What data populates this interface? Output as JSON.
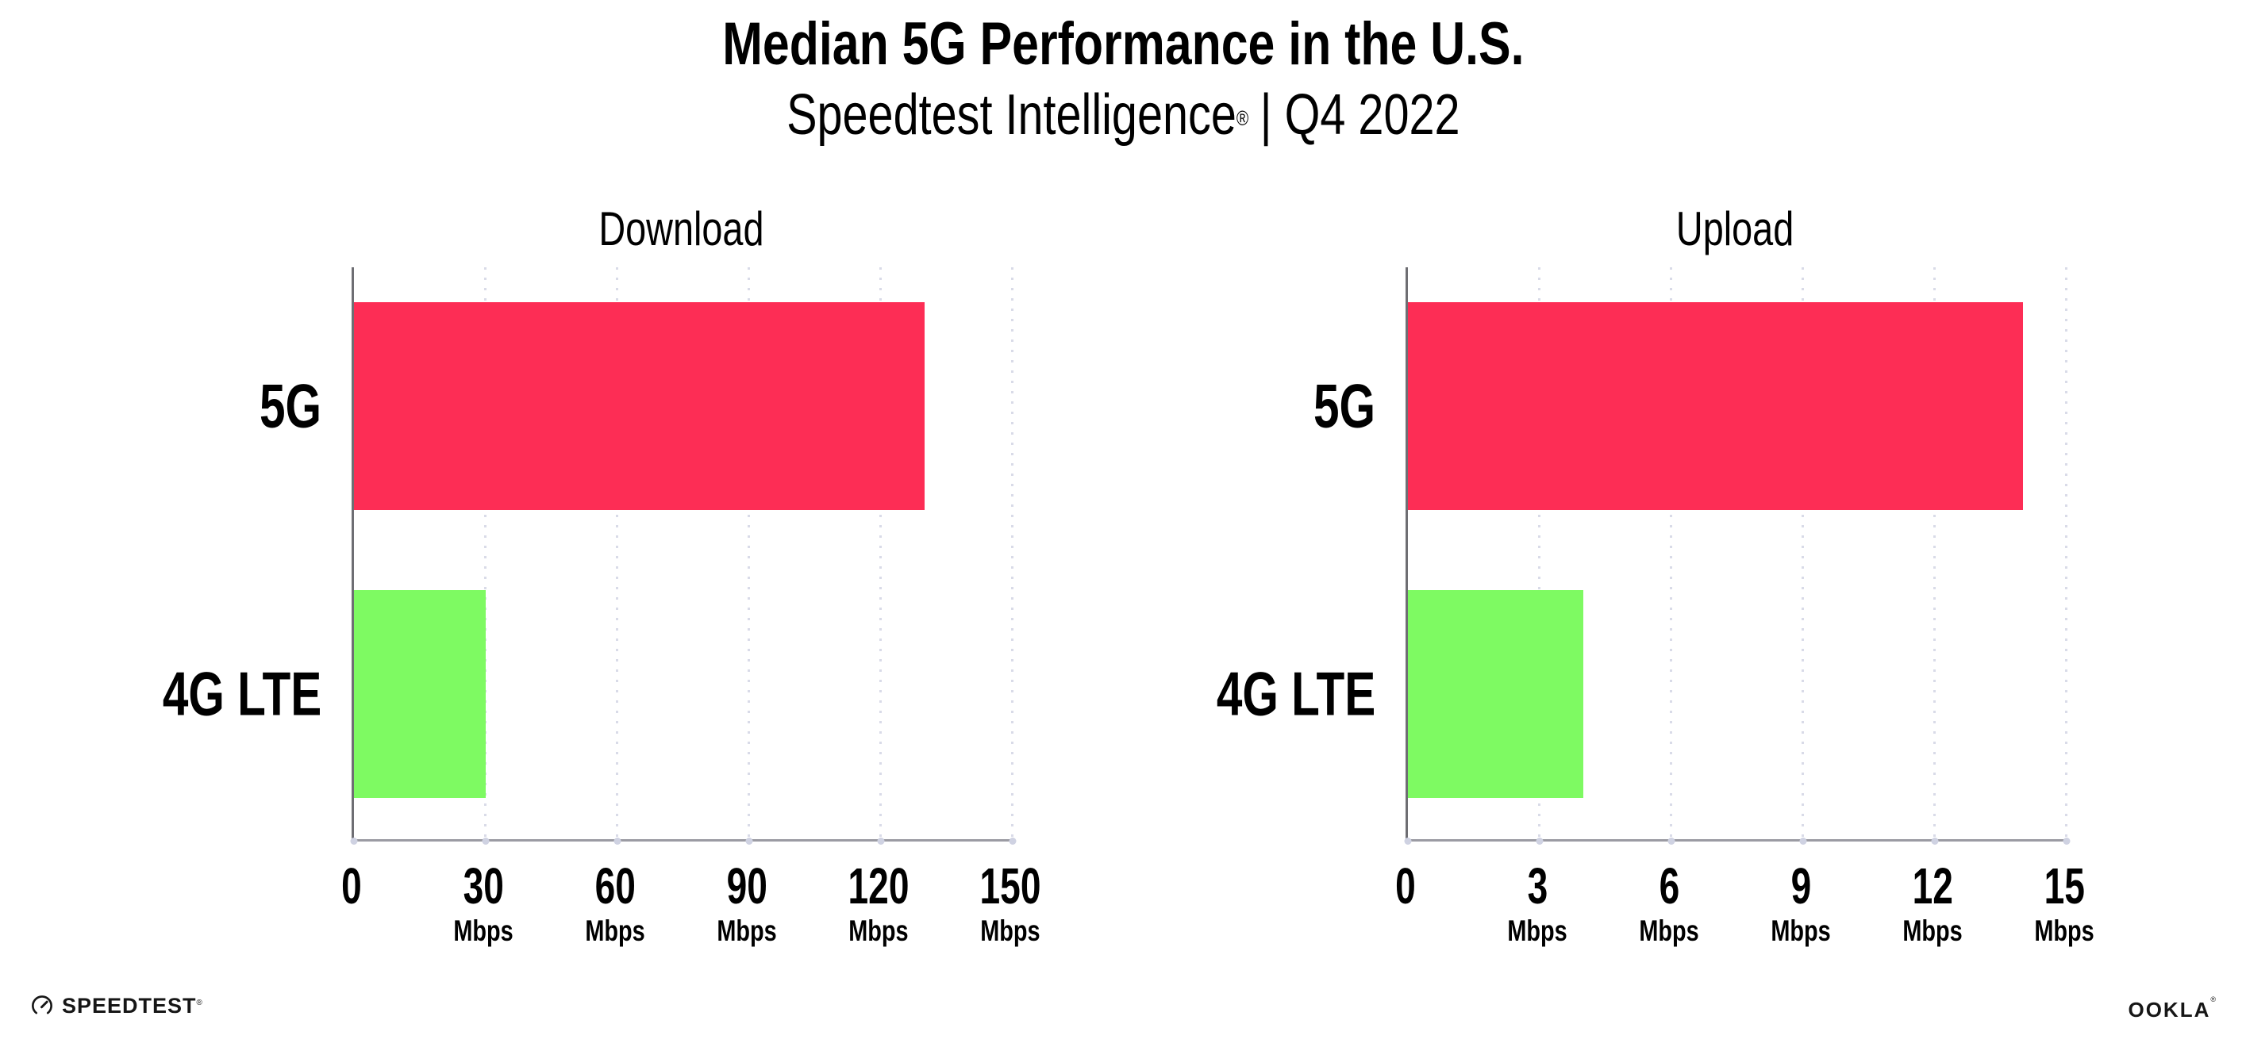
{
  "header": {
    "title": "Median 5G Performance in the U.S.",
    "subtitle_brand": "Speedtest Intelligence",
    "subtitle_reg": "®",
    "subtitle_rest": "| Q4 2022"
  },
  "colors": {
    "bar_5g": "#FD2D55",
    "bar_4g_lte": "#7EFA62",
    "gridline": "#D9DBE8",
    "y_axis_line": "#6E6E73",
    "x_axis_line": "#9B9BA3",
    "text": "#000000"
  },
  "chart_data": [
    {
      "type": "bar",
      "orientation": "horizontal",
      "title": "Download",
      "categories": [
        "5G",
        "4G LTE"
      ],
      "values": [
        130,
        30
      ],
      "unit": "Mbps",
      "xlim": [
        0,
        150
      ],
      "xticks": [
        0,
        30,
        60,
        90,
        120,
        150
      ],
      "grid": "dotted-vertical",
      "legend": "none",
      "bar_colors": [
        "#FD2D55",
        "#7EFA62"
      ]
    },
    {
      "type": "bar",
      "orientation": "horizontal",
      "title": "Upload",
      "categories": [
        "5G",
        "4G LTE"
      ],
      "values": [
        14,
        4
      ],
      "unit": "Mbps",
      "xlim": [
        0,
        15
      ],
      "xticks": [
        0,
        3,
        6,
        9,
        12,
        15
      ],
      "grid": "dotted-vertical",
      "legend": "none",
      "bar_colors": [
        "#FD2D55",
        "#7EFA62"
      ]
    }
  ],
  "footer": {
    "speedtest_label": "SPEEDTEST",
    "speedtest_mark": "®",
    "speedtest_icon": "gauge-icon",
    "ookla_label": "OOKLA",
    "ookla_mark": "®"
  }
}
